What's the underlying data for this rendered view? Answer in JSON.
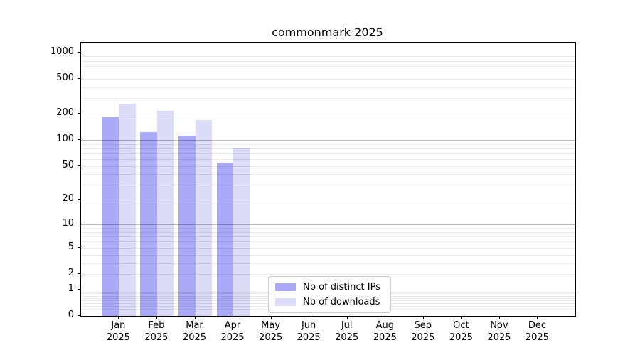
{
  "chart_data": {
    "type": "bar",
    "title": "commonmark 2025",
    "categories": [
      "Jan",
      "Feb",
      "Mar",
      "Apr",
      "May",
      "Jun",
      "Jul",
      "Aug",
      "Sep",
      "Oct",
      "Nov",
      "Dec"
    ],
    "x_tick_year": "2025",
    "series": [
      {
        "name": "Nb of distinct IPs",
        "color": "#a9a9f7",
        "values": [
          183,
          123,
          112,
          55,
          null,
          null,
          null,
          null,
          null,
          null,
          null,
          null
        ]
      },
      {
        "name": "Nb of downloads",
        "color": "#dcdcf8",
        "values": [
          258,
          214,
          168,
          81,
          null,
          null,
          null,
          null,
          null,
          null,
          null,
          null
        ]
      }
    ],
    "y_axis": {
      "scale": "log1p",
      "tick_values": [
        0,
        1,
        2,
        5,
        10,
        20,
        50,
        100,
        200,
        500,
        1000
      ],
      "tick_labels": [
        "0",
        "1",
        "2",
        "5",
        "10",
        "20",
        "50",
        "100",
        "200",
        "500",
        "1000"
      ],
      "axis_max": 1290,
      "major_gridline_values": [
        1,
        10,
        100,
        1000
      ],
      "minor_gridline_values": [
        0.2,
        0.3,
        0.4,
        0.5,
        0.6,
        0.7,
        0.8,
        0.9,
        2,
        3,
        4,
        5,
        6,
        7,
        8,
        9,
        20,
        30,
        40,
        50,
        60,
        70,
        80,
        90,
        200,
        300,
        400,
        500,
        600,
        700,
        800,
        900
      ]
    },
    "grid": "both",
    "legend_position": "inside-bottom-center",
    "colors": {
      "background": "#ffffff",
      "spine": "#000000",
      "text": "#000000",
      "major_grid": "rgba(0,0,0,0.27)",
      "minor_grid": "rgba(0,0,0,0.085)",
      "legend_border": "#cccccc"
    }
  }
}
